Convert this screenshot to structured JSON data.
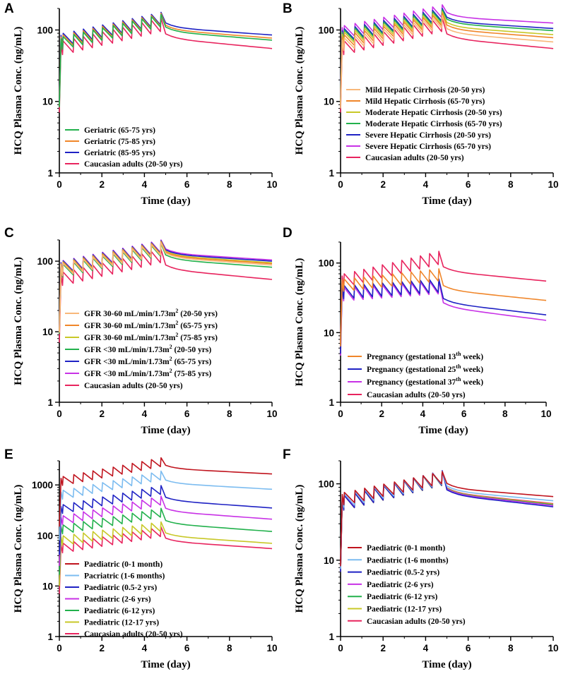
{
  "figure": {
    "x_ticks": [
      "0",
      "2",
      "4",
      "6",
      "8",
      "10"
    ]
  },
  "chart_data": [
    {
      "type": "line",
      "panel": "A",
      "xlabel": "Time (day)",
      "ylabel": "HCQ Plasma Conc. (ng/mL)",
      "xlim": [
        0,
        10
      ],
      "ylim": [
        1,
        200
      ],
      "yscale": "log",
      "y_ticks": [
        "1",
        "10",
        "100"
      ],
      "legend_position": "bottom-left",
      "series": [
        {
          "name": "Geriatric (65-75 yrs)",
          "color": "#22b14c",
          "terminal": 72,
          "base_start": 50,
          "base_end": 110,
          "peak_ratio": 1.5
        },
        {
          "name": "Geriatric (75-85 yrs)",
          "color": "#f0862a",
          "terminal": 77,
          "base_start": 53,
          "base_end": 114,
          "peak_ratio": 1.5
        },
        {
          "name": "Geriatric (85-95 yrs)",
          "color": "#1f22c4",
          "terminal": 85,
          "base_start": 56,
          "base_end": 118,
          "peak_ratio": 1.5
        },
        {
          "name": "Caucasian adults (20-50 yrs)",
          "color": "#e8245e",
          "terminal": 55,
          "base_start": 42,
          "base_end": 95,
          "peak_ratio": 1.55
        }
      ]
    },
    {
      "type": "line",
      "panel": "B",
      "xlabel": "Time (day)",
      "ylabel": "HCQ Plasma Conc. (ng/mL)",
      "xlim": [
        0,
        10
      ],
      "ylim": [
        1,
        200
      ],
      "yscale": "log",
      "y_ticks": [
        "1",
        "10",
        "100"
      ],
      "legend_position": "bottom-right",
      "series": [
        {
          "name": "Mild Hepatic Cirrhosis (20-50 yrs)",
          "color": "#f8b87a",
          "terminal": 68,
          "base_start": 48,
          "base_end": 106,
          "peak_ratio": 1.5
        },
        {
          "name": "Mild Hepatic Cirrhosis (65-70 yrs)",
          "color": "#f0862a",
          "terminal": 78,
          "base_start": 53,
          "base_end": 114,
          "peak_ratio": 1.5
        },
        {
          "name": "Moderate Hepatic Cirrhosis (20-50 yrs)",
          "color": "#c8c828",
          "terminal": 86,
          "base_start": 58,
          "base_end": 120,
          "peak_ratio": 1.5
        },
        {
          "name": "Moderate Hepatic Cirrhosis (65-70 yrs)",
          "color": "#22b14c",
          "terminal": 98,
          "base_start": 62,
          "base_end": 128,
          "peak_ratio": 1.5
        },
        {
          "name": "Severe Hepatic Cirrhosis (20-50 yrs)",
          "color": "#1f22c4",
          "terminal": 105,
          "base_start": 65,
          "base_end": 134,
          "peak_ratio": 1.5
        },
        {
          "name": "Severe Hepatic Cirrhosis (65-70 yrs)",
          "color": "#c832e6",
          "terminal": 125,
          "base_start": 72,
          "base_end": 150,
          "peak_ratio": 1.5
        },
        {
          "name": "Caucasian adults (20-50 yrs)",
          "color": "#e8245e",
          "terminal": 55,
          "base_start": 42,
          "base_end": 95,
          "peak_ratio": 1.55
        }
      ]
    },
    {
      "type": "line",
      "panel": "C",
      "xlabel": "Time (day)",
      "ylabel": "HCQ Plasma Conc. (ng/mL)",
      "xlim": [
        0,
        10
      ],
      "ylim": [
        1,
        200
      ],
      "yscale": "log",
      "y_ticks": [
        "1",
        "10",
        "100"
      ],
      "legend_position": "bottom-left",
      "series": [
        {
          "name": "GFR 30-60 mL/min/1.73m² (20-50 yrs)",
          "pre": "GFR 30-60 mL/min/1.73m",
          "sup": "2",
          "post": " (20-50 yrs)",
          "color": "#f8b87a",
          "terminal": 88,
          "base_start": 58,
          "base_end": 122,
          "peak_ratio": 1.5
        },
        {
          "name": "GFR 30-60 mL/min/1.73m² (65-75 yrs)",
          "pre": "GFR 30-60 mL/min/1.73m",
          "sup": "2",
          "post": " (65-75 yrs)",
          "color": "#f0862a",
          "terminal": 92,
          "base_start": 60,
          "base_end": 125,
          "peak_ratio": 1.5
        },
        {
          "name": "GFR 30-60 mL/min/1.73m² (75-85 yrs)",
          "pre": "GFR 30-60 mL/min/1.73m",
          "sup": "2",
          "post": " (75-85 yrs)",
          "color": "#c8c828",
          "terminal": 95,
          "base_start": 61,
          "base_end": 127,
          "peak_ratio": 1.5
        },
        {
          "name": "GFR <30 mL/min/1.73m² (20-50 yrs)",
          "pre": "GFR <30 mL/min/1.73m",
          "sup": "2",
          "post": " (20-50 yrs)",
          "color": "#22b14c",
          "terminal": 82,
          "base_start": 56,
          "base_end": 118,
          "peak_ratio": 1.5
        },
        {
          "name": "GFR <30 mL/min/1.73m² (65-75 yrs)",
          "pre": "GFR <30 mL/min/1.73m",
          "sup": "2",
          "post": " (65-75 yrs)",
          "color": "#1f22c4",
          "terminal": 100,
          "base_start": 63,
          "base_end": 130,
          "peak_ratio": 1.5
        },
        {
          "name": "GFR <30 mL/min/1.73m² (75-85 yrs)",
          "pre": "GFR <30 mL/min/1.73m",
          "sup": "2",
          "post": " (75-85 yrs)",
          "color": "#c832e6",
          "terminal": 104,
          "base_start": 64,
          "base_end": 133,
          "peak_ratio": 1.5
        },
        {
          "name": "Caucasian adults (20-50 yrs)",
          "color": "#e8245e",
          "terminal": 55,
          "base_start": 42,
          "base_end": 95,
          "peak_ratio": 1.55
        }
      ]
    },
    {
      "type": "line",
      "panel": "D",
      "xlabel": "Time (day)",
      "ylabel": "HCQ Plasma Conc. (ng/mL)",
      "xlim": [
        0,
        10
      ],
      "ylim": [
        1,
        200
      ],
      "yscale": "log",
      "y_ticks": [
        "1",
        "10",
        "100"
      ],
      "legend_position": "bottom-right",
      "series": [
        {
          "name": "Pregnancy (gestational 13th week)",
          "pre": "Pregnancy (gestational 13",
          "sup": "th",
          "post": " week)",
          "color": "#f0862a",
          "terminal": 29,
          "base_start": 38,
          "base_end": 55,
          "peak_ratio": 1.5
        },
        {
          "name": "Pregnancy (gestational 25th week)",
          "pre": "Pregnancy (gestational 25",
          "sup": "th",
          "post": " week)",
          "color": "#1f22c4",
          "terminal": 18,
          "base_start": 30,
          "base_end": 38,
          "peak_ratio": 1.55
        },
        {
          "name": "Pregnancy (gestational 37th week)",
          "pre": "Pregnancy (gestational 37",
          "sup": "th",
          "post": " week)",
          "color": "#c832e6",
          "terminal": 15,
          "base_start": 28,
          "base_end": 36,
          "peak_ratio": 1.55
        },
        {
          "name": "Caucasian adults (20-50 yrs)",
          "color": "#e8245e",
          "terminal": 55,
          "base_start": 42,
          "base_end": 95,
          "peak_ratio": 1.55
        }
      ]
    },
    {
      "type": "line",
      "panel": "E",
      "xlabel": "Time (day)",
      "ylabel": "HCQ Plasma Conc. (ng/mL)",
      "xlim": [
        0,
        10
      ],
      "ylim": [
        1,
        3000
      ],
      "yscale": "log",
      "y_ticks": [
        "1",
        "10",
        "100",
        "1000"
      ],
      "legend_position": "bottom-left",
      "series": [
        {
          "name": "Paediatric (0-1 month)",
          "color": "#c0141e",
          "terminal": 1650,
          "base_start": 900,
          "base_end": 2300,
          "peak_ratio": 1.5
        },
        {
          "name": "Pacriatric (1-6 months)",
          "color": "#7cbcf0",
          "terminal": 820,
          "base_start": 480,
          "base_end": 1250,
          "peak_ratio": 1.5
        },
        {
          "name": "Paediatric (0.5-2 yrs)",
          "color": "#1f22c4",
          "terminal": 350,
          "base_start": 250,
          "base_end": 650,
          "peak_ratio": 1.5
        },
        {
          "name": "Paediatric (2-6 yrs)",
          "color": "#c832e6",
          "terminal": 210,
          "base_start": 150,
          "base_end": 400,
          "peak_ratio": 1.5
        },
        {
          "name": "Paediatric (6-12 yrs)",
          "color": "#22b14c",
          "terminal": 120,
          "base_start": 100,
          "base_end": 230,
          "peak_ratio": 1.5
        },
        {
          "name": "Paediatric (12-17 yrs)",
          "color": "#c8c828",
          "terminal": 70,
          "base_start": 60,
          "base_end": 120,
          "peak_ratio": 1.55
        },
        {
          "name": "Caucasian adults (20-50 yrs)",
          "color": "#e8245e",
          "terminal": 55,
          "base_start": 42,
          "base_end": 95,
          "peak_ratio": 1.55
        }
      ]
    },
    {
      "type": "line",
      "panel": "F",
      "xlabel": "Time (day)",
      "ylabel": "HCQ Plasma Conc. (ng/mL)",
      "xlim": [
        0,
        10
      ],
      "ylim": [
        1,
        200
      ],
      "yscale": "log",
      "y_ticks": [
        "1",
        "10",
        "100"
      ],
      "legend_position": "bottom-left",
      "series": [
        {
          "name": "Paediatric (0-1 month)",
          "color": "#c0141e",
          "terminal": 68,
          "base_start": 50,
          "base_end": 100,
          "peak_ratio": 1.45
        },
        {
          "name": "Paediatric (1-6 months)",
          "color": "#7cbcf0",
          "terminal": 60,
          "base_start": 46,
          "base_end": 98,
          "peak_ratio": 1.5
        },
        {
          "name": "Paediatric (0.5-2 yrs)",
          "color": "#1f22c4",
          "terminal": 50,
          "base_start": 42,
          "base_end": 96,
          "peak_ratio": 1.55
        },
        {
          "name": "Paediatric (2-6 yrs)",
          "color": "#c832e6",
          "terminal": 52,
          "base_start": 43,
          "base_end": 96,
          "peak_ratio": 1.55
        },
        {
          "name": "Paediatric (6-12 yrs)",
          "color": "#22b14c",
          "terminal": 53,
          "base_start": 43,
          "base_end": 95,
          "peak_ratio": 1.55
        },
        {
          "name": "Paediatric (12-17 yrs)",
          "color": "#c8c828",
          "terminal": 54,
          "base_start": 42,
          "base_end": 95,
          "peak_ratio": 1.55
        },
        {
          "name": "Caucasian adults (20-50 yrs)",
          "color": "#e8245e",
          "terminal": 55,
          "base_start": 42,
          "base_end": 95,
          "peak_ratio": 1.55
        }
      ]
    }
  ]
}
